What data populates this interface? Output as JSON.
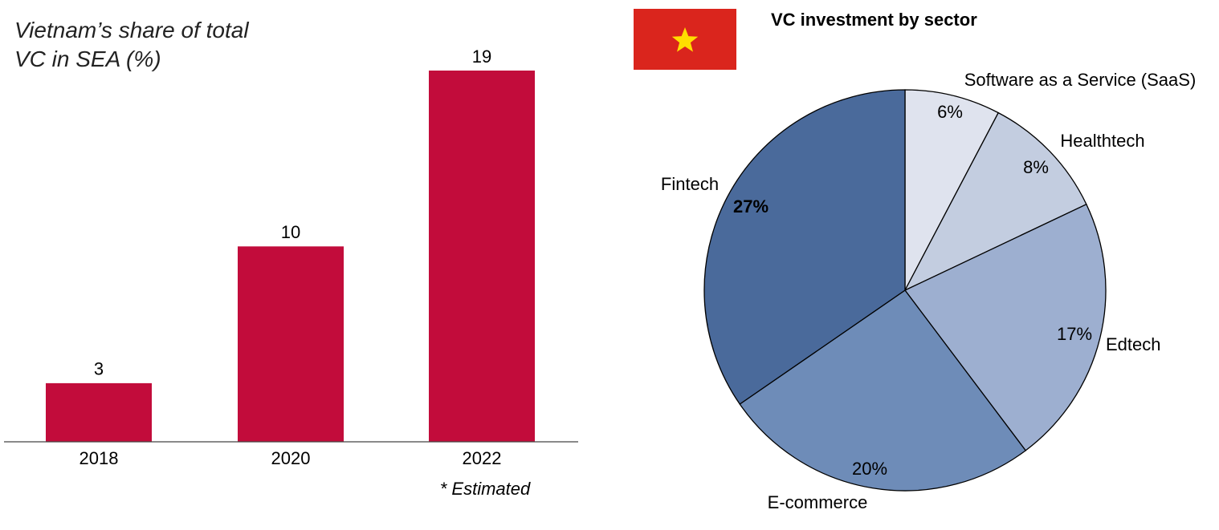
{
  "chart_data": [
    {
      "type": "bar",
      "title": "Vietnam’s share of total VC in SEA (%)",
      "categories": [
        "2018",
        "2020",
        "2022"
      ],
      "values": [
        3,
        10,
        19
      ],
      "color": "#c20c3b",
      "note": "* Estimated"
    },
    {
      "type": "pie",
      "title": "VC investment by sector",
      "categories": [
        "Software as a Service (SaaS)",
        "Healthtech",
        "Edtech",
        "E-commerce",
        "Fintech"
      ],
      "values": [
        6,
        8,
        17,
        20,
        27
      ],
      "value_labels": [
        "6%",
        "8%",
        "17%",
        "20%",
        "27%"
      ],
      "colors": [
        "#dfe3ee",
        "#c3cde0",
        "#9dafd0",
        "#6e8cb8",
        "#4a6a9b"
      ]
    }
  ]
}
